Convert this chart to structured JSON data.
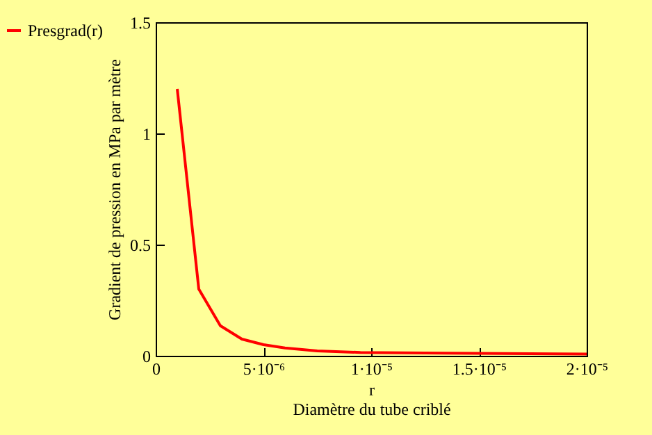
{
  "chart_data": {
    "type": "line",
    "xlabel": "r\nDiamètre du tube criblé",
    "ylabel": "Gradient de pression en MPa par mètre",
    "x": [
      1e-06,
      2e-06,
      3e-06,
      4e-06,
      5e-06,
      6e-06,
      7.5e-06,
      9.5e-06,
      1.35e-05,
      2e-05
    ],
    "series": [
      {
        "name": "Presgrad(r)",
        "color": "#ff0000",
        "values": [
          1.2,
          0.3,
          0.135,
          0.075,
          0.05,
          0.035,
          0.022,
          0.015,
          0.012,
          0.008
        ]
      }
    ],
    "xlim": [
      0,
      2e-05
    ],
    "xticks": [
      0,
      {
        "value": 5e-06,
        "label": "5·10⁻⁶"
      },
      {
        "value": 1e-05,
        "label": "1·10⁻⁵"
      },
      {
        "value": 1.5e-05,
        "label": "1.5·10⁻⁵"
      },
      {
        "value": 2e-05,
        "label": "2·10⁻⁵"
      }
    ],
    "ylim": [
      0,
      1.5
    ],
    "yticks": [
      0,
      0.5,
      1,
      1.5
    ],
    "grid": false,
    "legend": "left",
    "line_style": "solid",
    "marker": "none"
  }
}
